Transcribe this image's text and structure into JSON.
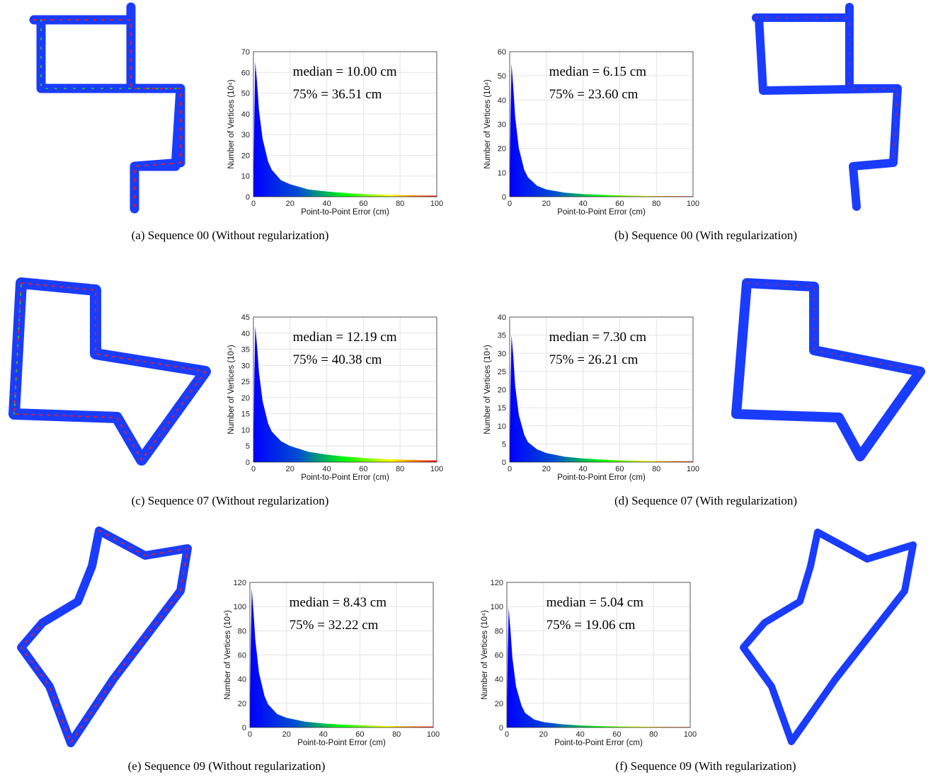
{
  "chart_data": [
    {
      "type": "area",
      "caption": "(a) Sequence 00 (Without regularization)",
      "annotations": [
        "median = 10.00 cm",
        "75% = 36.51 cm"
      ],
      "x_label": "Point-to-Point Error (cm)",
      "y_label": "Number of Vertices (10⁴)",
      "x": [
        0,
        0.5,
        1,
        2,
        3,
        5,
        8,
        10,
        15,
        20,
        30,
        40,
        50,
        60,
        70,
        80,
        90,
        100
      ],
      "values": [
        0,
        40,
        65,
        55,
        42,
        28,
        17,
        13,
        8,
        6,
        3.5,
        2.5,
        1.8,
        1.3,
        1,
        0.8,
        0.6,
        0.5
      ],
      "xlim": [
        0,
        100
      ],
      "xticks": [
        0,
        20,
        40,
        60,
        80,
        100
      ],
      "ylim": [
        0,
        70
      ],
      "yticks": [
        0,
        10,
        20,
        30,
        40,
        50,
        60,
        70
      ],
      "grid": true,
      "colormap": [
        "#0000ff",
        "#0050d0",
        "#00ff00",
        "#ffff00",
        "#ff0000"
      ]
    },
    {
      "type": "area",
      "caption": "(b) Sequence 00 (With regularization)",
      "annotations": [
        "median = 6.15 cm",
        "75% = 23.60 cm"
      ],
      "x_label": "Point-to-Point Error (cm)",
      "y_label": "Number of Vertices (10⁴)",
      "x": [
        0,
        0.5,
        1,
        2,
        3,
        5,
        8,
        10,
        15,
        20,
        30,
        40,
        50,
        60,
        70,
        80,
        90,
        100
      ],
      "values": [
        0,
        35,
        55,
        45,
        33,
        20,
        11,
        8,
        4.5,
        3,
        1.7,
        1.1,
        0.8,
        0.6,
        0.4,
        0.3,
        0.25,
        0.2
      ],
      "xlim": [
        0,
        100
      ],
      "xticks": [
        0,
        20,
        40,
        60,
        80,
        100
      ],
      "ylim": [
        0,
        60
      ],
      "yticks": [
        0,
        10,
        20,
        30,
        40,
        50,
        60
      ],
      "grid": true,
      "colormap": [
        "#0000ff",
        "#0050d0",
        "#00ff00",
        "#ffff00",
        "#ff0000"
      ]
    },
    {
      "type": "area",
      "caption": "(c) Sequence 07 (Without regularization)",
      "annotations": [
        "median = 12.19 cm",
        "75% = 40.38 cm"
      ],
      "x_label": "Point-to-Point Error (cm)",
      "y_label": "Number of Vertices (10⁴)",
      "x": [
        0,
        0.5,
        1,
        2,
        3,
        5,
        8,
        10,
        15,
        20,
        30,
        40,
        50,
        60,
        70,
        80,
        90,
        100
      ],
      "values": [
        0,
        27,
        42,
        36,
        28,
        19,
        12,
        9.5,
        6.5,
        5,
        3.2,
        2.3,
        1.7,
        1.3,
        1,
        0.8,
        0.6,
        0.5
      ],
      "xlim": [
        0,
        100
      ],
      "xticks": [
        0,
        20,
        40,
        60,
        80,
        100
      ],
      "ylim": [
        0,
        45
      ],
      "yticks": [
        0,
        5,
        10,
        15,
        20,
        25,
        30,
        35,
        40,
        45
      ],
      "grid": true,
      "colormap": [
        "#0000ff",
        "#0050d0",
        "#00ff00",
        "#ffff00",
        "#ff0000"
      ]
    },
    {
      "type": "area",
      "caption": "(d) Sequence 07 (With regularization)",
      "annotations": [
        "median = 7.30 cm",
        "75% = 26.21 cm"
      ],
      "x_label": "Point-to-Point Error (cm)",
      "y_label": "Number of Vertices (10⁴)",
      "x": [
        0,
        0.5,
        1,
        2,
        3,
        5,
        8,
        10,
        15,
        20,
        30,
        40,
        50,
        60,
        70,
        80,
        90,
        100
      ],
      "values": [
        0,
        22,
        35,
        29,
        21,
        13,
        7.5,
        5.5,
        3.5,
        2.5,
        1.5,
        1,
        0.7,
        0.5,
        0.4,
        0.3,
        0.25,
        0.2
      ],
      "xlim": [
        0,
        100
      ],
      "xticks": [
        0,
        20,
        40,
        60,
        80,
        100
      ],
      "ylim": [
        0,
        40
      ],
      "yticks": [
        0,
        5,
        10,
        15,
        20,
        25,
        30,
        35,
        40
      ],
      "grid": true,
      "colormap": [
        "#0000ff",
        "#0050d0",
        "#00ff00",
        "#ffff00",
        "#ff0000"
      ]
    },
    {
      "type": "area",
      "caption": "(e) Sequence 09 (Without regularization)",
      "annotations": [
        "median = 8.43 cm",
        "75% = 32.22 cm"
      ],
      "x_label": "Point-to-Point Error (cm)",
      "y_label": "Number of Vertices (10⁴)",
      "x": [
        0,
        0.5,
        1,
        2,
        3,
        5,
        8,
        10,
        15,
        20,
        30,
        40,
        50,
        60,
        70,
        80,
        90,
        100
      ],
      "values": [
        0,
        70,
        115,
        95,
        72,
        45,
        26,
        19,
        11,
        8,
        4.8,
        3.3,
        2.4,
        1.8,
        1.4,
        1.1,
        0.9,
        0.7
      ],
      "xlim": [
        0,
        100
      ],
      "xticks": [
        0,
        20,
        40,
        60,
        80,
        100
      ],
      "ylim": [
        0,
        120
      ],
      "yticks": [
        0,
        20,
        40,
        60,
        80,
        100,
        120
      ],
      "grid": true,
      "colormap": [
        "#0000ff",
        "#0050d0",
        "#00ff00",
        "#ffff00",
        "#ff0000"
      ]
    },
    {
      "type": "area",
      "caption": "(f) Sequence 09 (With regularization)",
      "annotations": [
        "median = 5.04 cm",
        "75% = 19.06 cm"
      ],
      "x_label": "Point-to-Point Error (cm)",
      "y_label": "Number of Vertices (10⁴)",
      "x": [
        0,
        0.5,
        1,
        2,
        3,
        5,
        8,
        10,
        15,
        20,
        30,
        40,
        50,
        60,
        70,
        80,
        90,
        100
      ],
      "values": [
        0,
        62,
        99,
        80,
        58,
        34,
        18,
        12,
        6.5,
        4.5,
        2.6,
        1.7,
        1.2,
        0.9,
        0.7,
        0.55,
        0.45,
        0.35
      ],
      "xlim": [
        0,
        100
      ],
      "xticks": [
        0,
        20,
        40,
        60,
        80,
        100
      ],
      "ylim": [
        0,
        120
      ],
      "yticks": [
        0,
        20,
        40,
        60,
        80,
        100,
        120
      ],
      "grid": true,
      "colormap": [
        "#0000ff",
        "#0050d0",
        "#00ff00",
        "#ffff00",
        "#ff0000"
      ]
    }
  ]
}
